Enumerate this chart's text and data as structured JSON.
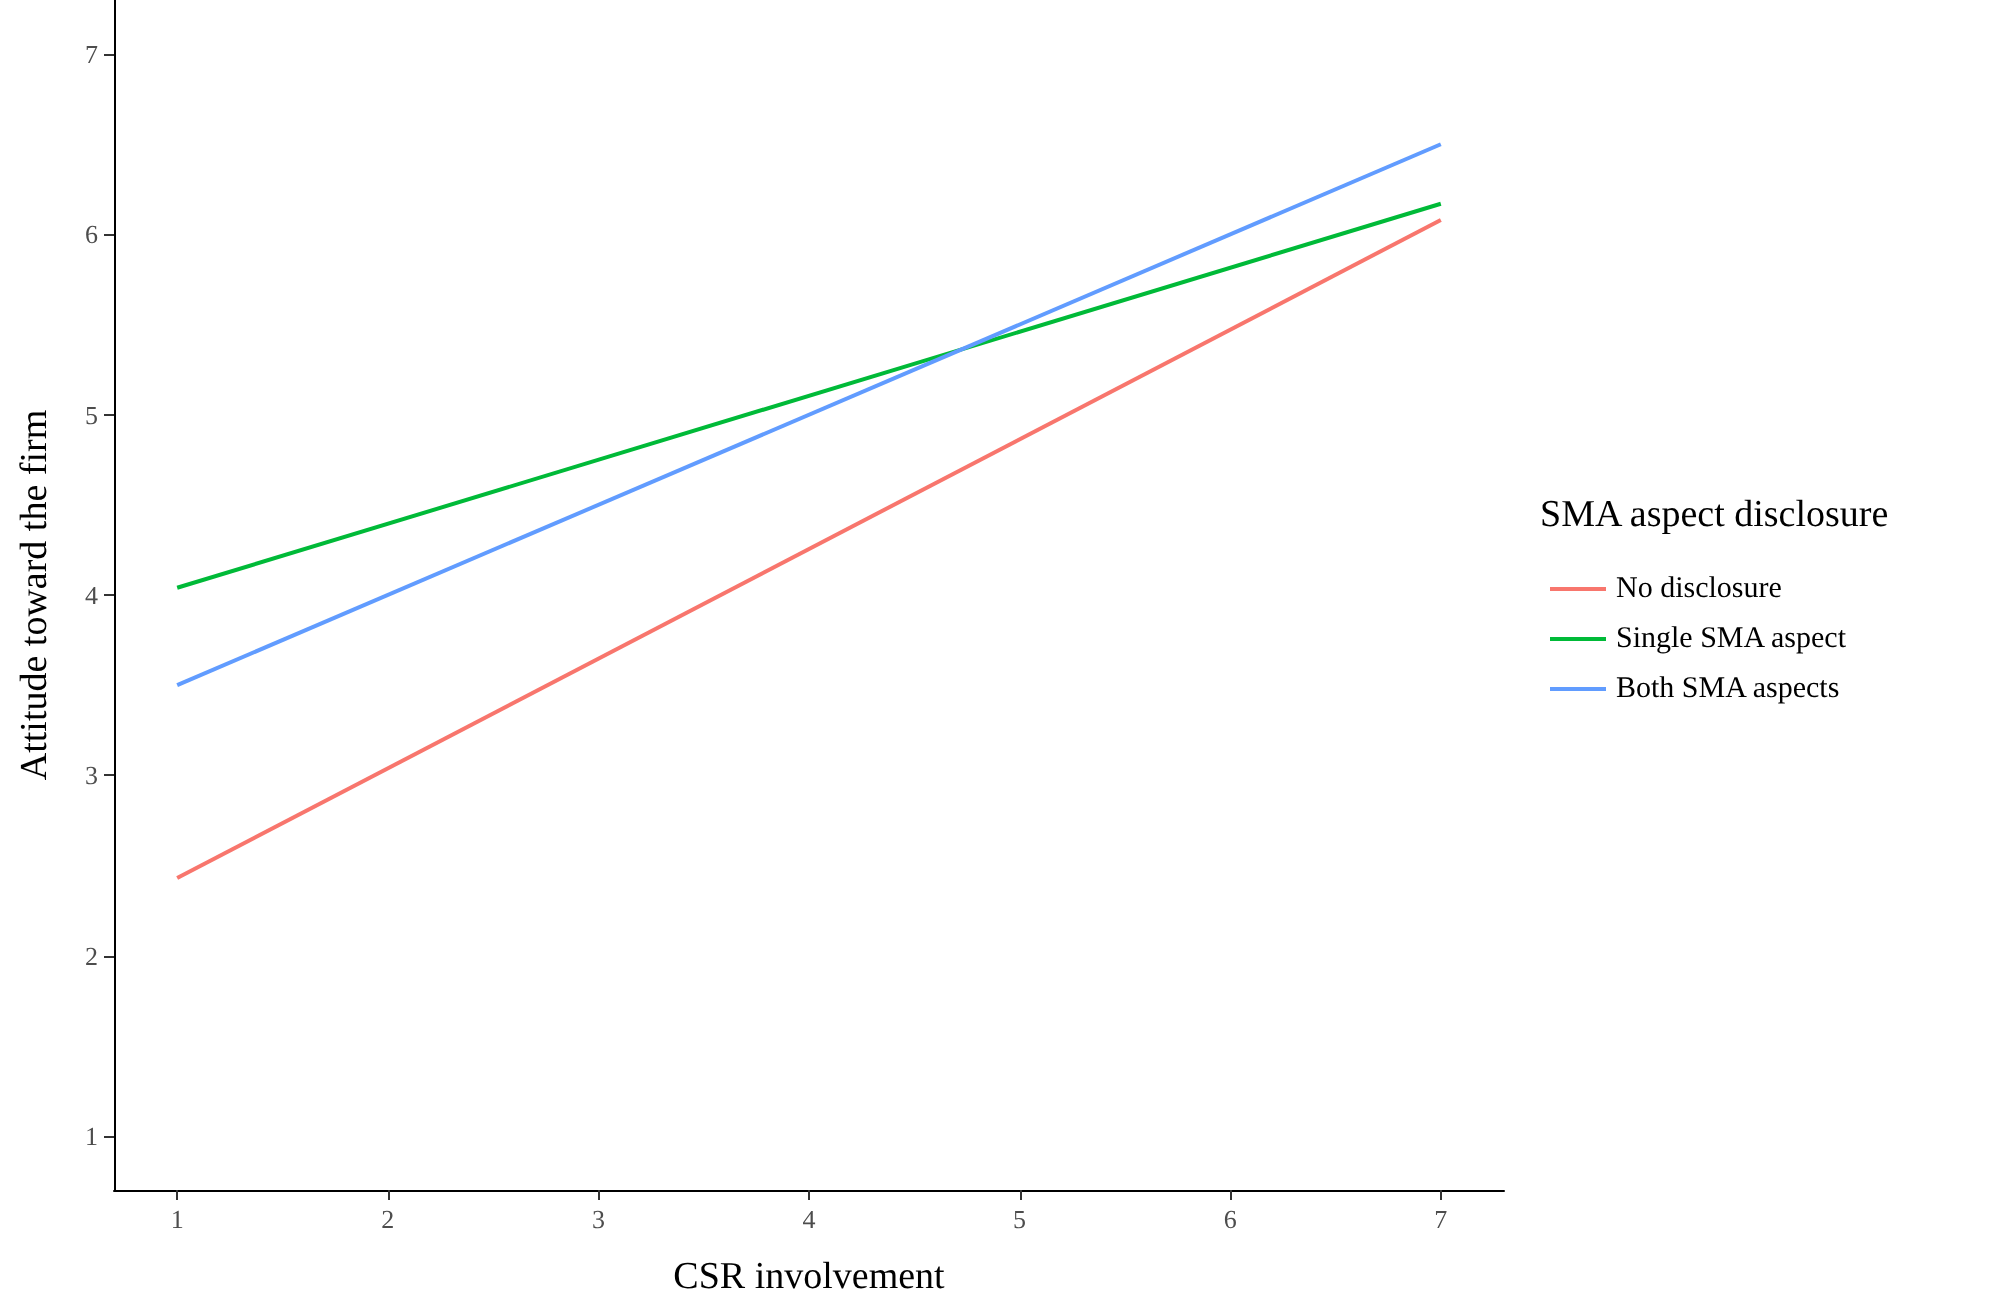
{
  "chart_data": {
    "type": "line",
    "xlabel": "CSR involvement",
    "ylabel": "Attitude toward the firm",
    "legend_title": "SMA aspect disclosure",
    "legend": "right",
    "grid": false,
    "marker": "none",
    "line_style": "solid",
    "x": [
      1,
      7
    ],
    "xlim": [
      0.7,
      7.3
    ],
    "xticks": [
      1,
      2,
      3,
      4,
      5,
      6,
      7
    ],
    "ylim": [
      0.7,
      7.3
    ],
    "yticks": [
      1,
      2,
      3,
      4,
      5,
      6,
      7
    ],
    "series": [
      {
        "name": "No disclosure",
        "color": "#f8766d",
        "values": [
          2.43,
          6.08
        ]
      },
      {
        "name": "Single SMA aspect",
        "color": "#00ba38",
        "values": [
          4.04,
          6.17
        ]
      },
      {
        "name": "Both SMA aspects",
        "color": "#619cff",
        "values": [
          3.5,
          6.5
        ]
      }
    ]
  }
}
